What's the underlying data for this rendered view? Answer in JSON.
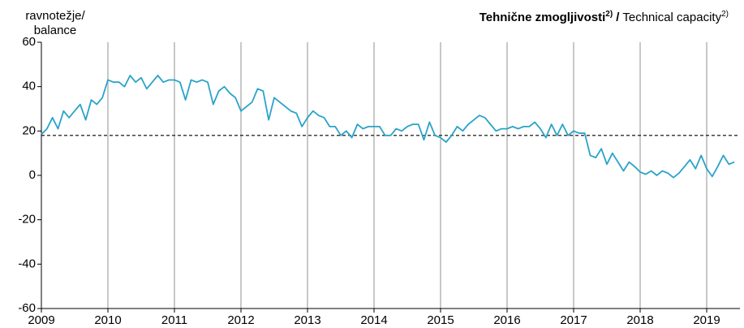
{
  "chart_data": {
    "type": "line",
    "title_si": "Tehnične zmogljivosti",
    "title_note": "2)",
    "title_sep": "/",
    "title_en": "Technical capacity",
    "ylabel": [
      "ravnotežje/",
      "balance"
    ],
    "categories": [
      "2009",
      null,
      null,
      null,
      null,
      null,
      null,
      null,
      null,
      null,
      null,
      null,
      "2010",
      null,
      null,
      null,
      null,
      null,
      null,
      null,
      null,
      null,
      null,
      null,
      "2011",
      null,
      null,
      null,
      null,
      null,
      null,
      null,
      null,
      null,
      null,
      null,
      "2012",
      null,
      null,
      null,
      null,
      null,
      null,
      null,
      null,
      null,
      null,
      null,
      "2013",
      null,
      null,
      null,
      null,
      null,
      null,
      null,
      null,
      null,
      null,
      null,
      "2014",
      null,
      null,
      null,
      null,
      null,
      null,
      null,
      null,
      null,
      null,
      null,
      "2015",
      null,
      null,
      null,
      null,
      null,
      null,
      null,
      null,
      null,
      null,
      null,
      "2016",
      null,
      null,
      null,
      null,
      null,
      null,
      null,
      null,
      null,
      null,
      null,
      "2017",
      null,
      null,
      null,
      null,
      null,
      null,
      null,
      null,
      null,
      null,
      null,
      "2018",
      null,
      null,
      null,
      null,
      null,
      null,
      null,
      null,
      null,
      null,
      null,
      "2019",
      null,
      null,
      null,
      null,
      null
    ],
    "series": [
      {
        "name": "Technical capacity",
        "color": "#2aa3c9",
        "values": [
          18.5,
          21,
          26,
          21,
          29,
          26,
          29,
          32,
          25,
          34,
          32,
          35,
          43,
          42,
          42,
          40,
          45,
          42,
          44,
          39,
          42,
          45,
          42,
          43,
          43,
          42,
          34,
          43,
          42,
          43,
          42,
          32,
          38,
          40,
          37,
          35,
          29,
          31,
          33,
          39,
          38,
          25,
          35,
          33,
          31,
          29,
          28,
          22,
          26,
          29,
          27,
          26,
          22,
          22,
          18,
          20,
          17,
          23,
          21,
          22,
          22,
          22,
          18,
          18,
          21,
          20,
          22,
          23,
          23,
          16,
          24,
          18,
          17,
          15,
          18,
          22,
          20,
          23,
          25,
          27,
          26,
          23,
          20,
          21,
          21,
          22,
          21,
          22,
          22,
          24,
          21,
          17,
          23,
          18,
          23,
          18,
          20,
          19,
          19,
          9,
          8,
          12,
          5,
          10,
          6,
          2,
          6,
          4,
          1.5,
          0.5,
          2,
          0,
          2,
          1,
          -1,
          1,
          4,
          7,
          3,
          9,
          3,
          -0.5,
          4,
          9,
          5,
          6
        ]
      }
    ],
    "reference": 18,
    "ylim": [
      -60,
      60
    ],
    "yticks": [
      -60,
      -40,
      -20,
      0,
      20,
      40,
      60
    ],
    "grid": true
  }
}
